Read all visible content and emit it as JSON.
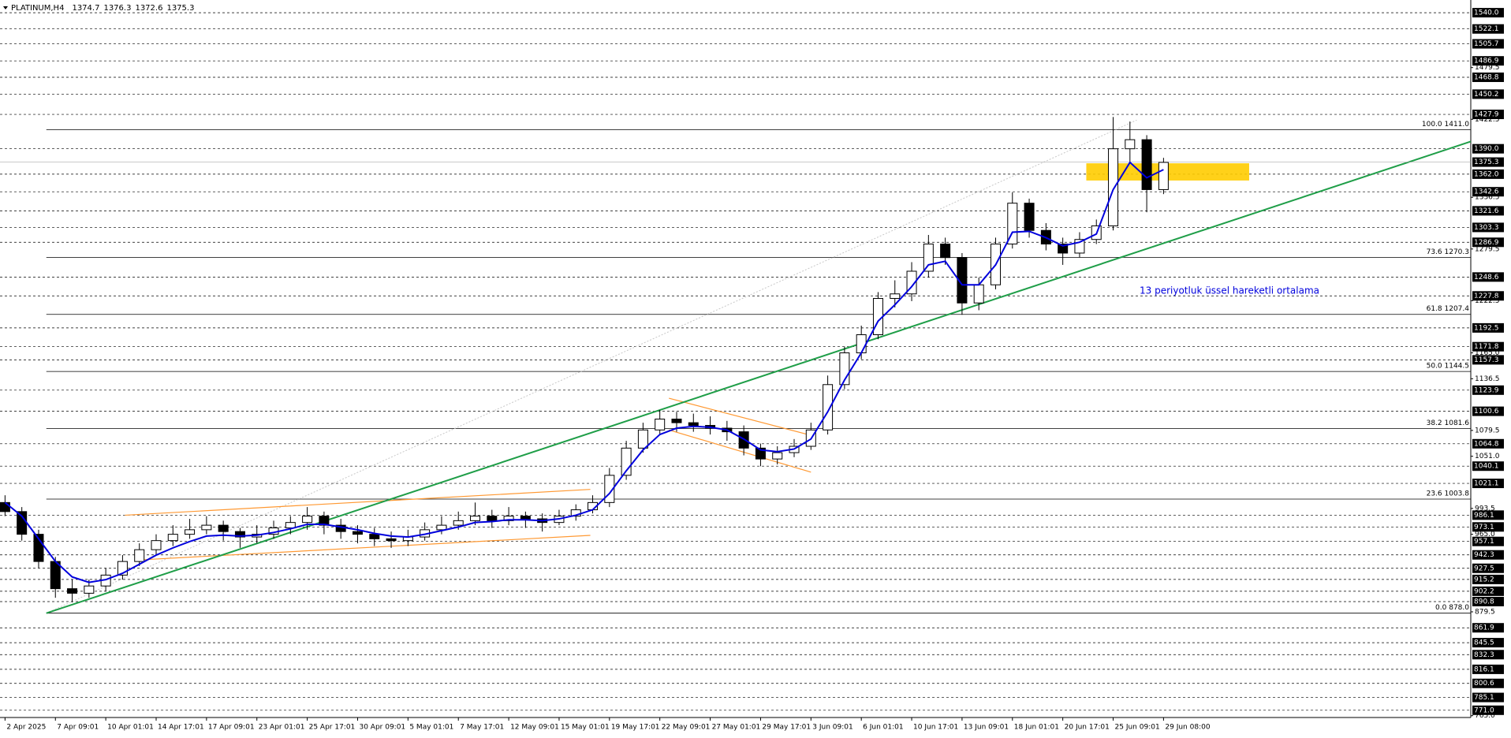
{
  "chart_data": {
    "type": "candlestick",
    "symbol": "PLATINUM,H4",
    "ohlc_header": [
      1374.7,
      1376.3,
      1372.6,
      1375.3
    ],
    "bull_color": "#ffffff",
    "bear_color": "#000000",
    "open": [
      1000,
      990,
      965,
      935,
      905,
      900,
      908,
      920,
      935,
      948,
      958,
      965,
      970,
      975,
      968,
      962,
      965,
      972,
      978,
      985,
      975,
      968,
      965,
      960,
      958,
      962,
      970,
      975,
      980,
      985,
      980,
      985,
      982,
      978,
      985,
      992,
      1000,
      1030,
      1060,
      1080,
      1092,
      1088,
      1085,
      1082,
      1078,
      1060,
      1048,
      1055,
      1062,
      1080,
      1130,
      1165,
      1185,
      1225,
      1230,
      1255,
      1285,
      1270,
      1220,
      1240,
      1285,
      1330,
      1300,
      1285,
      1275,
      1290,
      1305,
      1390,
      1400,
      1345
    ],
    "high": [
      1008,
      995,
      970,
      940,
      915,
      915,
      928,
      942,
      955,
      965,
      975,
      982,
      985,
      980,
      972,
      975,
      980,
      985,
      995,
      990,
      982,
      975,
      972,
      968,
      970,
      978,
      985,
      990,
      1000,
      992,
      995,
      990,
      988,
      992,
      998,
      1008,
      1038,
      1068,
      1088,
      1102,
      1100,
      1098,
      1095,
      1090,
      1085,
      1065,
      1062,
      1070,
      1088,
      1140,
      1172,
      1195,
      1232,
      1245,
      1265,
      1295,
      1292,
      1275,
      1248,
      1292,
      1342,
      1335,
      1308,
      1292,
      1298,
      1312,
      1425,
      1420,
      1405,
      1380
    ],
    "low": [
      985,
      958,
      928,
      895,
      890,
      895,
      902,
      915,
      930,
      942,
      952,
      960,
      965,
      958,
      950,
      955,
      960,
      965,
      970,
      965,
      960,
      955,
      952,
      950,
      952,
      958,
      965,
      970,
      975,
      972,
      975,
      972,
      968,
      975,
      980,
      988,
      995,
      1025,
      1055,
      1075,
      1078,
      1078,
      1075,
      1068,
      1052,
      1040,
      1042,
      1050,
      1058,
      1075,
      1125,
      1158,
      1180,
      1215,
      1222,
      1248,
      1262,
      1207,
      1212,
      1235,
      1280,
      1292,
      1278,
      1262,
      1270,
      1285,
      1300,
      1375,
      1320,
      1340
    ],
    "close": [
      990,
      965,
      935,
      905,
      900,
      908,
      920,
      935,
      948,
      958,
      965,
      970,
      975,
      968,
      962,
      965,
      972,
      978,
      985,
      975,
      968,
      965,
      960,
      958,
      962,
      970,
      975,
      980,
      985,
      980,
      985,
      982,
      978,
      985,
      992,
      1000,
      1030,
      1060,
      1080,
      1092,
      1088,
      1085,
      1082,
      1078,
      1060,
      1048,
      1055,
      1062,
      1080,
      1130,
      1165,
      1185,
      1225,
      1230,
      1255,
      1285,
      1270,
      1220,
      1240,
      1285,
      1330,
      1300,
      1285,
      1275,
      1290,
      1305,
      1390,
      1400,
      1345,
      1375
    ],
    "ema": {
      "label": "13 periyotluk üssel hareketli ortalama",
      "color": "#0000dd",
      "values": [
        1000,
        985,
        960,
        935,
        918,
        912,
        915,
        922,
        932,
        942,
        950,
        957,
        963,
        964,
        963,
        964,
        967,
        971,
        976,
        976,
        973,
        970,
        966,
        963,
        962,
        965,
        969,
        973,
        978,
        979,
        981,
        981,
        980,
        982,
        986,
        992,
        1010,
        1035,
        1058,
        1075,
        1082,
        1084,
        1083,
        1080,
        1070,
        1058,
        1056,
        1059,
        1070,
        1100,
        1135,
        1165,
        1200,
        1218,
        1238,
        1262,
        1266,
        1240,
        1240,
        1262,
        1298,
        1299,
        1292,
        1283,
        1287,
        1296,
        1345,
        1375,
        1358,
        1367
      ]
    },
    "xlim": [
      -0.3,
      87.3
    ],
    "ylim": [
      763,
      1554
    ],
    "xticks": [
      {
        "value": 0,
        "label": "2 Apr 2025"
      },
      {
        "value": 3,
        "label": "7 Apr 09:01"
      },
      {
        "value": 6,
        "label": "10 Apr 01:01"
      },
      {
        "value": 9,
        "label": "14 Apr 17:01"
      },
      {
        "value": 12,
        "label": "17 Apr 09:01"
      },
      {
        "value": 15,
        "label": "23 Apr 01:01"
      },
      {
        "value": 18,
        "label": "25 Apr 17:01"
      },
      {
        "value": 21,
        "label": "30 Apr 09:01"
      },
      {
        "value": 24,
        "label": "5 May 01:01"
      },
      {
        "value": 27,
        "label": "7 May 17:01"
      },
      {
        "value": 30,
        "label": "12 May 09:01"
      },
      {
        "value": 33,
        "label": "15 May 01:01"
      },
      {
        "value": 36,
        "label": "19 May 17:01"
      },
      {
        "value": 39,
        "label": "22 May 09:01"
      },
      {
        "value": 42,
        "label": "27 May 01:01"
      },
      {
        "value": 45,
        "label": "29 May 17:01"
      },
      {
        "value": 48,
        "label": "3 Jun 09:01"
      },
      {
        "value": 51,
        "label": "6 Jun 01:01"
      },
      {
        "value": 54,
        "label": "10 Jun 17:01"
      },
      {
        "value": 57,
        "label": "13 Jun 09:01"
      },
      {
        "value": 60,
        "label": "18 Jun 01:01"
      },
      {
        "value": 63,
        "label": "20 Jun 17:01"
      },
      {
        "value": 66,
        "label": "25 Jun 09:01"
      },
      {
        "value": 69,
        "label": "29 Jun 08:00"
      }
    ],
    "yticks": [
      {
        "value": 1479.5,
        "label": "1479.5"
      },
      {
        "value": 1422.5,
        "label": "1422.5"
      },
      {
        "value": 1336.5,
        "label": "1336.5"
      },
      {
        "value": 1279.5,
        "label": "1279.5"
      },
      {
        "value": 1222.5,
        "label": "1222.5"
      },
      {
        "value": 1165.0,
        "label": "1165.0"
      },
      {
        "value": 1136.5,
        "label": "1136.5"
      },
      {
        "value": 1079.5,
        "label": "1079.5"
      },
      {
        "value": 1051.0,
        "label": "1051.0"
      },
      {
        "value": 993.5,
        "label": "993.5"
      },
      {
        "value": 965.0,
        "label": "965.0"
      },
      {
        "value": 879.5,
        "label": "879.5"
      },
      {
        "value": 765.0,
        "label": "765.0"
      }
    ],
    "levels": [
      {
        "value": 1540.0,
        "label": "1540.0"
      },
      {
        "value": 1522.1,
        "label": "1522.1"
      },
      {
        "value": 1505.7,
        "label": "1505.7"
      },
      {
        "value": 1486.9,
        "label": "1486.9"
      },
      {
        "value": 1468.8,
        "label": "1468.8"
      },
      {
        "value": 1450.2,
        "label": "1450.2"
      },
      {
        "value": 1427.9,
        "label": "1427.9"
      },
      {
        "value": 1390.0,
        "label": "1390.0"
      },
      {
        "value": 1362.0,
        "label": "1362.0"
      },
      {
        "value": 1342.6,
        "label": "1342.6"
      },
      {
        "value": 1321.6,
        "label": "1321.6"
      },
      {
        "value": 1303.3,
        "label": "1303.3"
      },
      {
        "value": 1286.9,
        "label": "1286.9"
      },
      {
        "value": 1248.6,
        "label": "1248.6"
      },
      {
        "value": 1227.8,
        "label": "1227.8"
      },
      {
        "value": 1192.5,
        "label": "1192.5"
      },
      {
        "value": 1171.8,
        "label": "1171.8"
      },
      {
        "value": 1157.3,
        "label": "1157.3"
      },
      {
        "value": 1123.9,
        "label": "1123.9"
      },
      {
        "value": 1100.6,
        "label": "1100.6"
      },
      {
        "value": 1064.8,
        "label": "1064.8"
      },
      {
        "value": 1040.1,
        "label": "1040.1"
      },
      {
        "value": 1021.1,
        "label": "1021.1"
      },
      {
        "value": 986.1,
        "label": "986.1"
      },
      {
        "value": 973.1,
        "label": "973.1"
      },
      {
        "value": 957.1,
        "label": "957.1"
      },
      {
        "value": 942.3,
        "label": "942.3"
      },
      {
        "value": 927.5,
        "label": "927.5"
      },
      {
        "value": 915.2,
        "label": "915.2"
      },
      {
        "value": 902.2,
        "label": "902.2"
      },
      {
        "value": 890.8,
        "label": "890.8"
      },
      {
        "value": 861.9,
        "label": "861.9"
      },
      {
        "value": 845.5,
        "label": "845.5"
      },
      {
        "value": 832.3,
        "label": "832.3"
      },
      {
        "value": 816.1,
        "label": "816.1"
      },
      {
        "value": 800.6,
        "label": "800.6"
      },
      {
        "value": 785.1,
        "label": "785.1"
      },
      {
        "value": 771.0,
        "label": "771.0"
      }
    ],
    "current_price": {
      "value": 1375.3,
      "label": "1375.3"
    },
    "fibonacci": {
      "start": 2.46,
      "levels": [
        {
          "value": 1411.0,
          "label": "100.0 1411.0"
        },
        {
          "value": 1270.3,
          "label": "73.6 1270.3"
        },
        {
          "value": 1207.4,
          "label": "61.8 1207.4"
        },
        {
          "value": 1144.5,
          "label": "50.0 1144.5"
        },
        {
          "value": 1081.6,
          "label": "38.2 1081.6"
        },
        {
          "value": 1003.8,
          "label": "23.6 1003.8"
        },
        {
          "value": 878.0,
          "label": "0.0 878.0"
        }
      ]
    },
    "trendline": {
      "color": "#1f9e48",
      "x": [
        2.46,
        87.3
      ],
      "y": [
        878,
        1398
      ]
    },
    "diagonal": {
      "color": "#c8c8c8",
      "x": [
        2.46,
        67.4
      ],
      "y": [
        878,
        1421.6
      ]
    },
    "channels": [
      {
        "color": "#ff9933",
        "x": [
          7.14,
          34.86
        ],
        "y": [
          986,
          1014.5
        ]
      },
      {
        "color": "#ff9933",
        "x": [
          8.29,
          34.86
        ],
        "y": [
          937,
          963.8
        ]
      },
      {
        "color": "#ff9933",
        "x": [
          39.54,
          48.29
        ],
        "y": [
          1115,
          1072.7
        ]
      },
      {
        "color": "#ff9933",
        "x": [
          39.54,
          48.0
        ],
        "y": [
          1080,
          1033.5
        ]
      }
    ],
    "zone": {
      "color": "#ffcc00",
      "x": [
        64.4,
        74.1
      ],
      "y": [
        1374,
        1355
      ]
    }
  }
}
